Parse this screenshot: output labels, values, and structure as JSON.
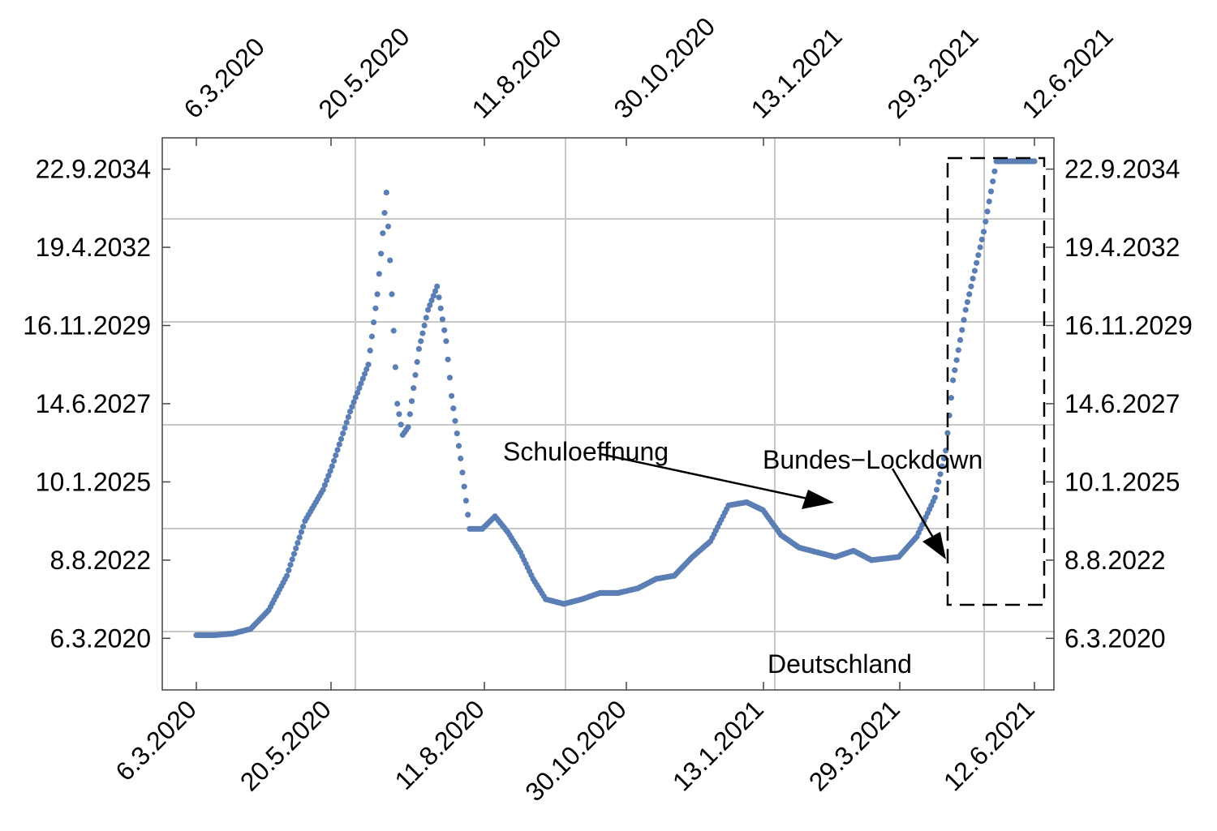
{
  "chart_data": {
    "type": "scatter",
    "x_axis_labels": [
      "6.3.2020",
      "20.5.2020",
      "11.8.2020",
      "30.10.2020",
      "13.1.2021",
      "29.3.2021",
      "12.6.2021"
    ],
    "y_axis_labels": [
      "6.3.2020",
      "8.8.2022",
      "10.1.2025",
      "14.6.2027",
      "16.11.2029",
      "19.4.2032",
      "22.9.2034"
    ],
    "x_range": [
      "6.3.2020",
      "12.6.2021"
    ],
    "y_tick_values": [
      0.0,
      0.5,
      1.0,
      1.5,
      2.0,
      2.5,
      3.0
    ],
    "ylim": [
      -0.33,
      3.2
    ],
    "grid": true,
    "color": "#5b7fb5",
    "series": [
      {
        "x": [
          "2020-03-06",
          "2020-03-16",
          "2020-03-26",
          "2020-04-05",
          "2020-04-15",
          "2020-04-25",
          "2020-05-05",
          "2020-05-15",
          "2020-05-20",
          "2020-05-30",
          "2020-06-09",
          "2020-06-14",
          "2020-06-19",
          "2020-06-22",
          "2020-06-25",
          "2020-06-28",
          "2020-07-01",
          "2020-07-04",
          "2020-07-07",
          "2020-07-12",
          "2020-07-17",
          "2020-07-22",
          "2020-07-25",
          "2020-07-30",
          "2020-08-04",
          "2020-08-11",
          "2020-08-18",
          "2020-08-25",
          "2020-09-01",
          "2020-09-08",
          "2020-09-15",
          "2020-09-25",
          "2020-10-05",
          "2020-10-15",
          "2020-10-25",
          "2020-11-05",
          "2020-11-15",
          "2020-11-25",
          "2020-12-05",
          "2020-12-15",
          "2020-12-25",
          "2021-01-04",
          "2021-01-13",
          "2021-01-23",
          "2021-02-02",
          "2021-02-12",
          "2021-02-22",
          "2021-03-04",
          "2021-03-14",
          "2021-03-29",
          "2021-04-08",
          "2021-04-18",
          "2021-04-24",
          "2021-04-28",
          "2021-05-05",
          "2021-05-15",
          "2021-05-22",
          "2021-05-28",
          "2021-06-02",
          "2021-06-07",
          "2021-06-10",
          "2021-06-12"
        ],
        "y": [
          0.02,
          0.02,
          0.03,
          0.06,
          0.18,
          0.4,
          0.75,
          0.95,
          1.1,
          1.45,
          1.75,
          2.2,
          2.85,
          2.2,
          1.5,
          1.3,
          1.35,
          1.6,
          1.85,
          2.1,
          2.25,
          1.9,
          1.55,
          1.15,
          0.7,
          0.7,
          0.78,
          0.68,
          0.55,
          0.38,
          0.25,
          0.22,
          0.25,
          0.29,
          0.29,
          0.32,
          0.38,
          0.4,
          0.52,
          0.62,
          0.85,
          0.87,
          0.82,
          0.66,
          0.58,
          0.55,
          0.52,
          0.56,
          0.5,
          0.52,
          0.65,
          0.9,
          1.2,
          1.65,
          2.1,
          2.6,
          3.05,
          3.05,
          3.05,
          3.05,
          3.05,
          3.05
        ]
      }
    ],
    "annotations": [
      "Schuloeffnung",
      "Bundes−Lockdown",
      "Deutschland"
    ]
  }
}
